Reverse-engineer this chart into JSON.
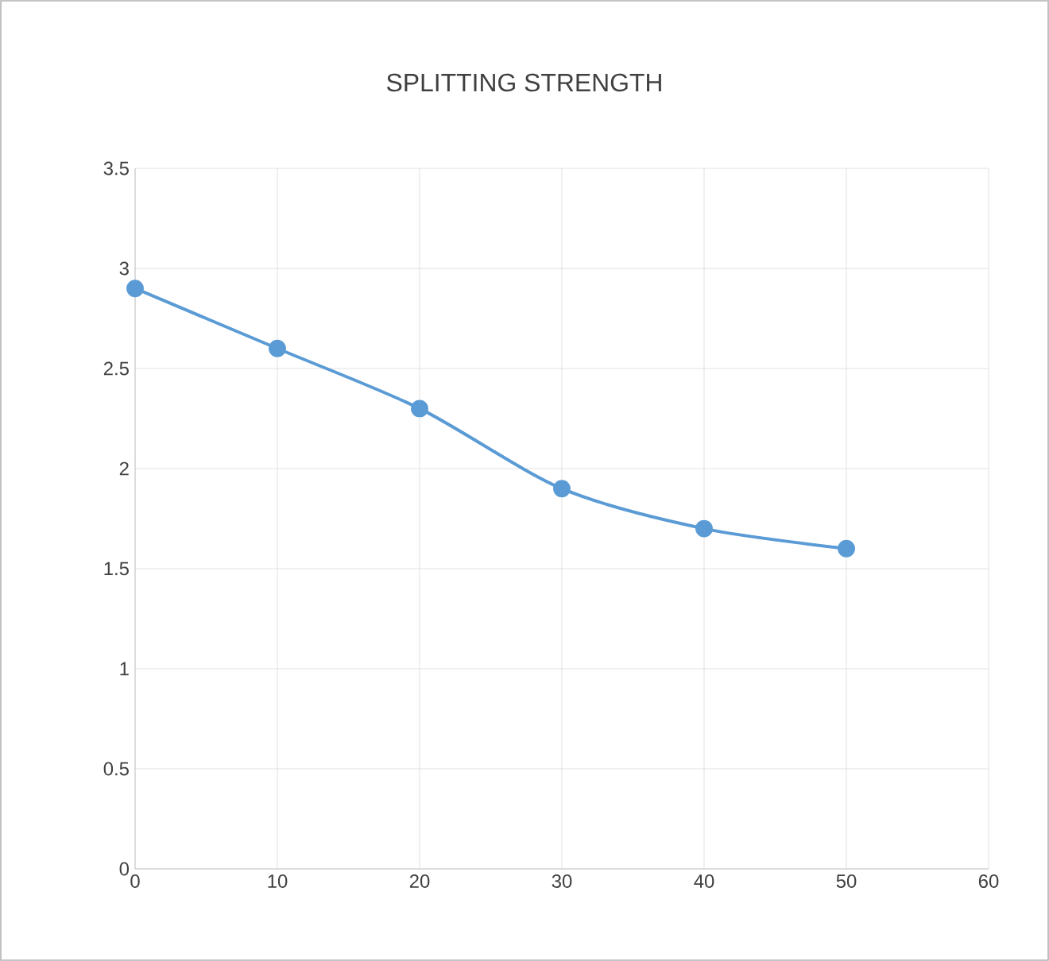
{
  "chart_data": {
    "type": "line",
    "title": "SPLITTING STRENGTH",
    "x": [
      0,
      10,
      20,
      30,
      40,
      50
    ],
    "series": [
      {
        "color": "#5b9bd5",
        "values": [
          2.9,
          2.6,
          2.3,
          1.9,
          1.7,
          1.6
        ]
      }
    ],
    "xlim": [
      0,
      60
    ],
    "xticks": [
      0,
      10,
      20,
      30,
      40,
      50,
      60
    ],
    "ylim": [
      0,
      3.5
    ],
    "yticks": [
      0,
      0.5,
      1,
      1.5,
      2,
      2.5,
      3,
      3.5
    ],
    "grid": true,
    "marker": "circle",
    "line_style": "solid"
  }
}
